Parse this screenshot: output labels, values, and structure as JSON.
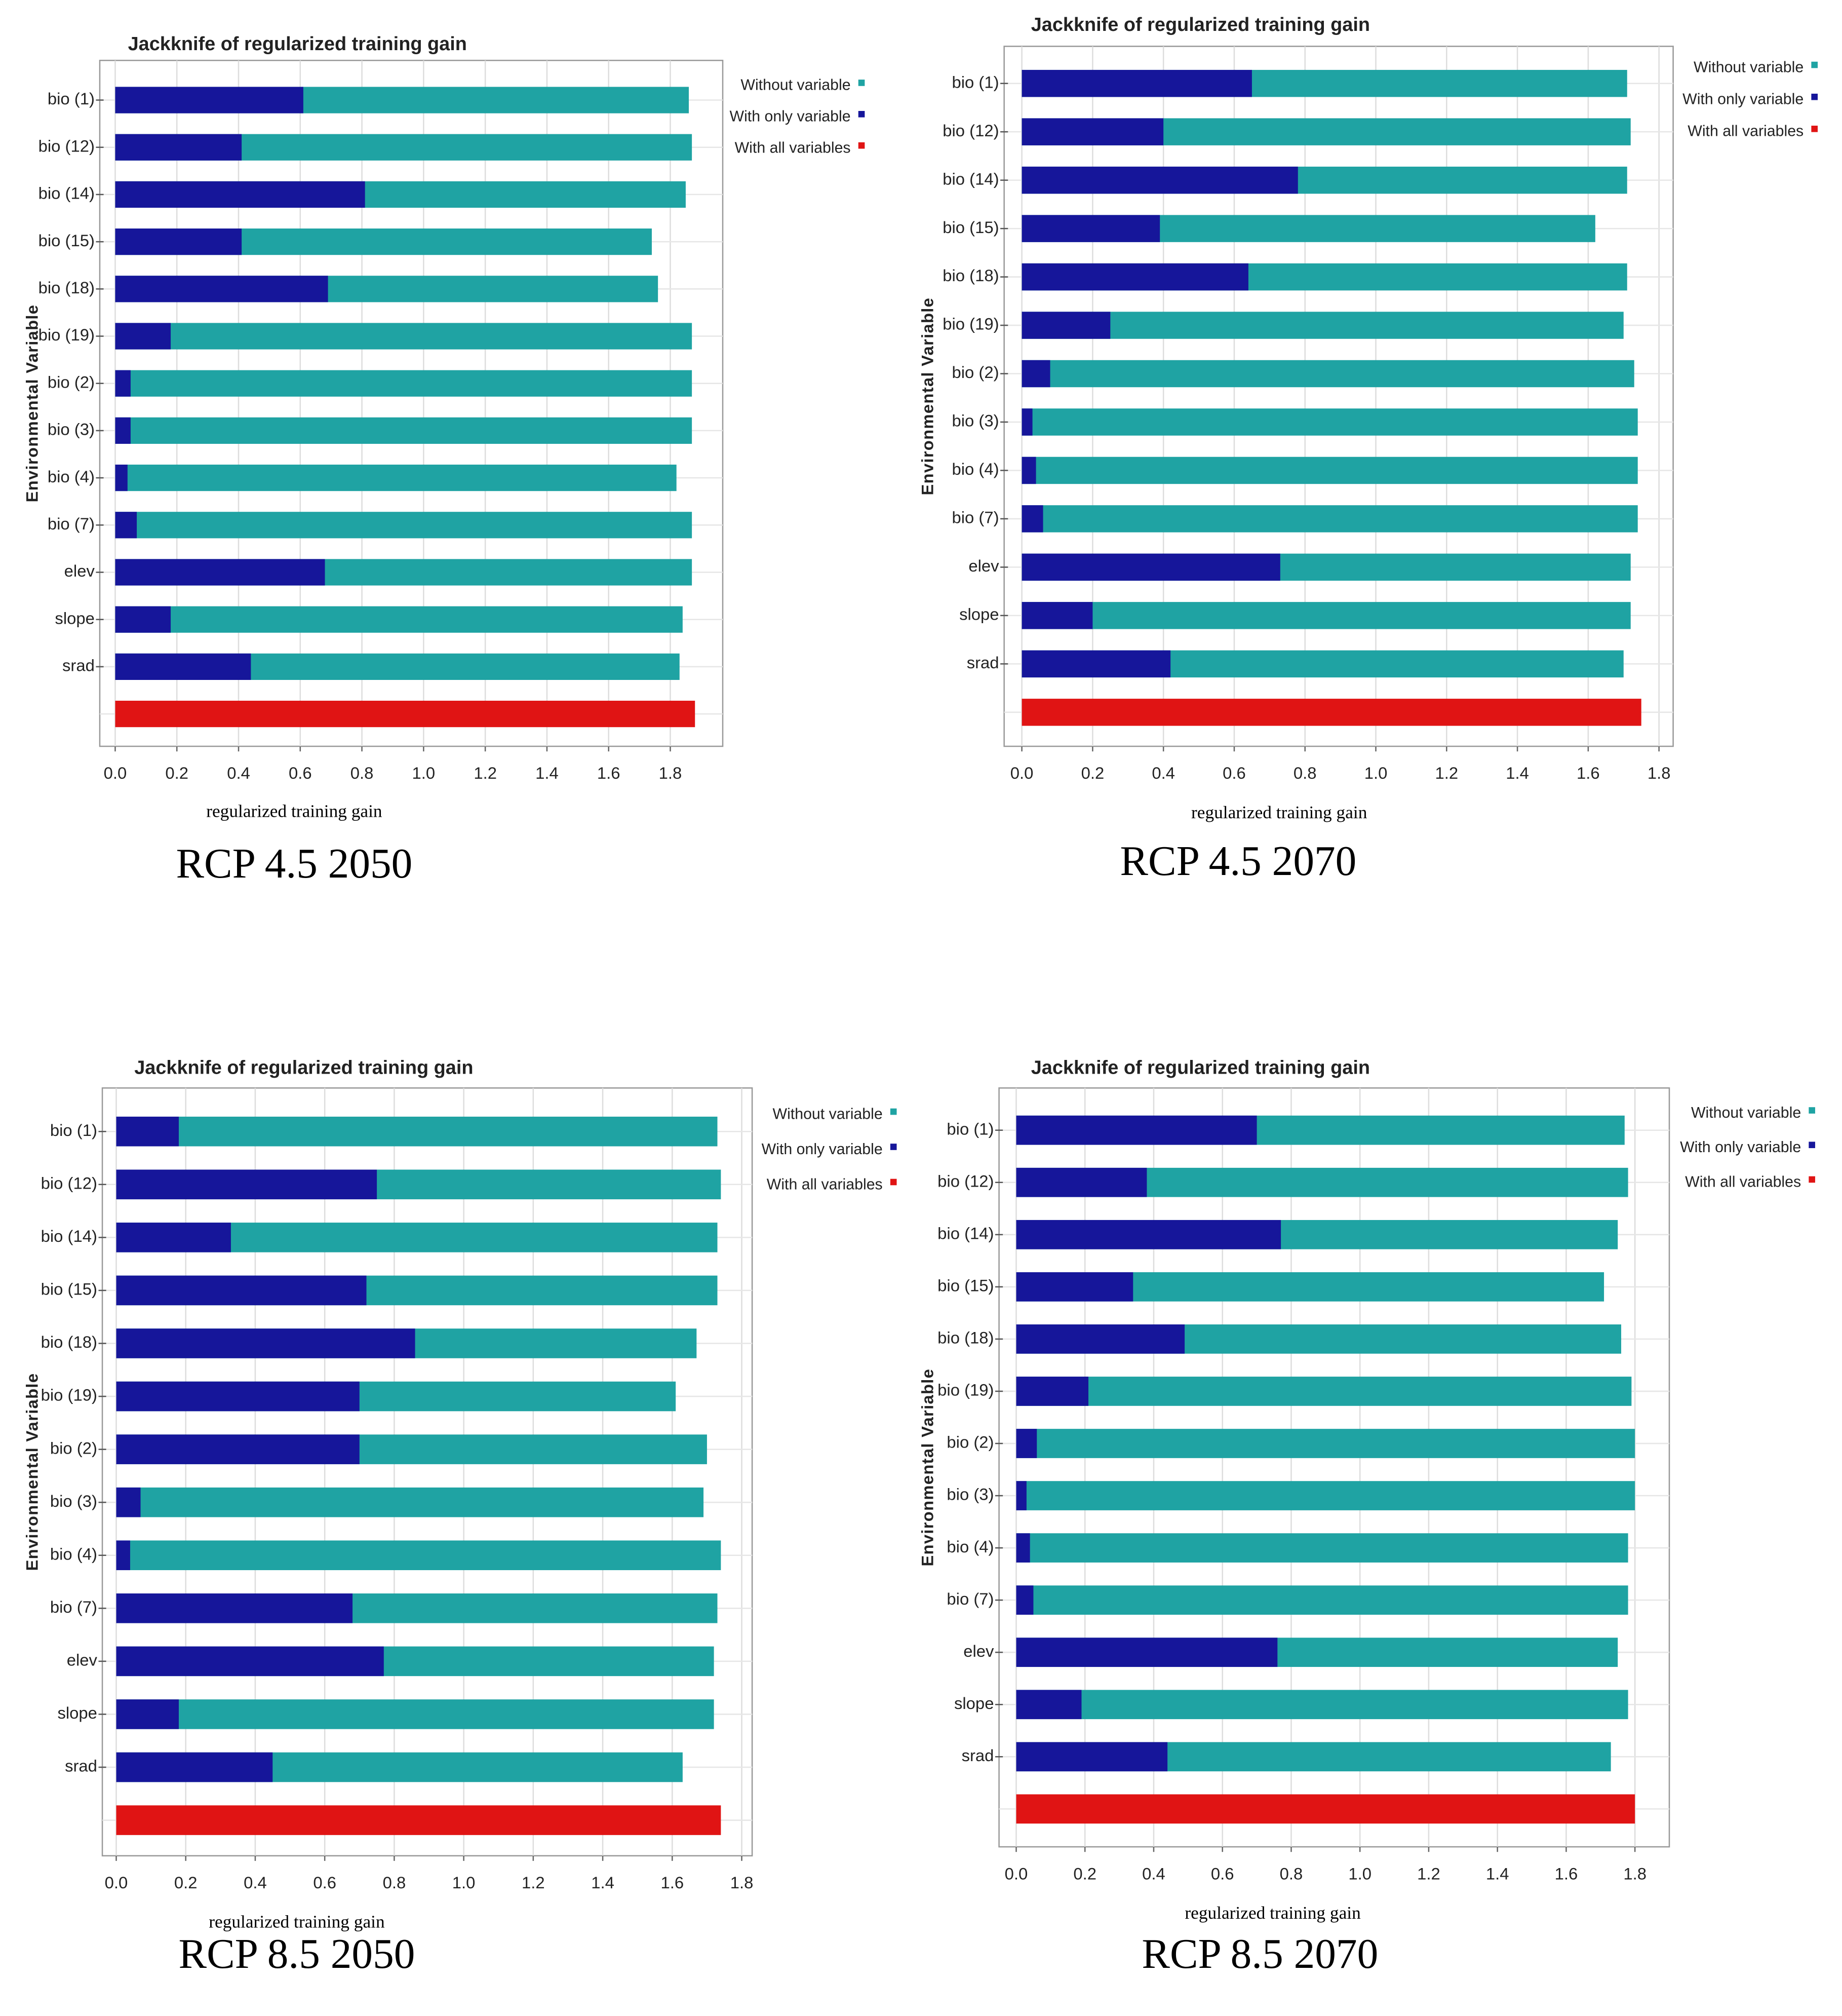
{
  "chart_data": [
    {
      "type": "bar",
      "title": "Jackknife of regularized training gain",
      "caption": "RCP 4.5 2050",
      "xlabel": "regularized training gain",
      "ylabel": "Environmental Variable",
      "legend": "upper right",
      "categories": [
        "bio (1)",
        "bio (12)",
        "bio (14)",
        "bio (15)",
        "bio (18)",
        "bio (19)",
        "bio (2)",
        "bio (3)",
        "bio (4)",
        "bio (7)",
        "elev",
        "slope",
        "srad",
        null
      ],
      "series": [
        {
          "name": "Without variable",
          "color": "#1fa3a3",
          "values": [
            1.86,
            1.87,
            1.85,
            1.74,
            1.76,
            1.87,
            1.87,
            1.87,
            1.82,
            1.87,
            1.87,
            1.84,
            1.83,
            null
          ]
        },
        {
          "name": "With only variable",
          "color": "#16169a",
          "values": [
            0.61,
            0.41,
            0.81,
            0.41,
            0.69,
            0.18,
            0.05,
            0.05,
            0.04,
            0.07,
            0.68,
            0.18,
            0.44,
            null
          ]
        },
        {
          "name": "With all variables",
          "color": "#e01414",
          "values": [
            null,
            null,
            null,
            null,
            null,
            null,
            null,
            null,
            null,
            null,
            null,
            null,
            null,
            1.88
          ]
        }
      ],
      "xlim": [
        -0.05,
        1.97
      ],
      "xticks": [
        {
          "value": 0,
          "label": "0.0"
        },
        0.2,
        0.4,
        0.6,
        0.8,
        {
          "value": 1,
          "label": "1.0"
        },
        1.2,
        1.4,
        1.6,
        1.8
      ],
      "grid": true
    },
    {
      "type": "bar",
      "title": "Jackknife of regularized training gain",
      "caption": "RCP 4.5 2070",
      "xlabel": "regularized training gain",
      "ylabel": "Environmental Variable",
      "legend": "upper right",
      "categories": [
        "bio (1)",
        "bio (12)",
        "bio (14)",
        "bio (15)",
        "bio (18)",
        "bio (19)",
        "bio (2)",
        "bio (3)",
        "bio (4)",
        "bio (7)",
        "elev",
        "slope",
        "srad",
        null
      ],
      "series": [
        {
          "name": "Without variable",
          "color": "#1fa3a3",
          "values": [
            1.71,
            1.72,
            1.71,
            1.62,
            1.71,
            1.7,
            1.73,
            1.74,
            1.74,
            1.74,
            1.72,
            1.72,
            1.7,
            null
          ]
        },
        {
          "name": "With only variable",
          "color": "#16169a",
          "values": [
            0.65,
            0.4,
            0.78,
            0.39,
            0.64,
            0.25,
            0.08,
            0.03,
            0.04,
            0.06,
            0.73,
            0.2,
            0.42,
            null
          ]
        },
        {
          "name": "With all variables",
          "color": "#e01414",
          "values": [
            null,
            null,
            null,
            null,
            null,
            null,
            null,
            null,
            null,
            null,
            null,
            null,
            null,
            1.75
          ]
        }
      ],
      "xlim": [
        -0.05,
        1.84
      ],
      "xticks": [
        {
          "value": 0,
          "label": "0.0"
        },
        0.2,
        0.4,
        0.6,
        0.8,
        {
          "value": 1,
          "label": "1.0"
        },
        1.2,
        1.4,
        1.6,
        1.8
      ],
      "grid": true
    },
    {
      "type": "bar",
      "title": "Jackknife of regularized training gain",
      "caption": "RCP 8.5 2050",
      "xlabel": "regularized training gain",
      "ylabel": "Environmental Variable",
      "legend": "upper right",
      "categories": [
        "bio (1)",
        "bio (12)",
        "bio (14)",
        "bio (15)",
        "bio (18)",
        "bio (19)",
        "bio (2)",
        "bio (3)",
        "bio (4)",
        "bio (7)",
        "elev",
        "slope",
        "srad",
        null
      ],
      "series": [
        {
          "name": "Without variable",
          "color": "#1fa3a3",
          "values": [
            1.73,
            1.74,
            1.73,
            1.73,
            1.67,
            1.61,
            1.7,
            1.69,
            1.74,
            1.73,
            1.72,
            1.72,
            1.63,
            null
          ]
        },
        {
          "name": "With only variable",
          "color": "#16169a",
          "values": [
            0.18,
            0.75,
            0.33,
            0.72,
            0.86,
            0.7,
            0.7,
            0.07,
            0.04,
            0.68,
            0.77,
            0.18,
            0.45,
            null
          ]
        },
        {
          "name": "With all variables",
          "color": "#e01414",
          "values": [
            null,
            null,
            null,
            null,
            null,
            null,
            null,
            null,
            null,
            null,
            null,
            null,
            null,
            1.74
          ]
        }
      ],
      "xlim": [
        -0.04,
        1.83
      ],
      "xticks": [
        {
          "value": 0,
          "label": "0.0"
        },
        0.2,
        0.4,
        0.6,
        0.8,
        {
          "value": 1,
          "label": "1.0"
        },
        1.2,
        1.4,
        1.6,
        1.8
      ],
      "grid": true
    },
    {
      "type": "bar",
      "title": "Jackknife of regularized training gain",
      "caption": "RCP 8.5 2070",
      "xlabel": "regularized training gain",
      "ylabel": "Environmental Variable",
      "legend": "upper right",
      "categories": [
        "bio (1)",
        "bio (12)",
        "bio (14)",
        "bio (15)",
        "bio (18)",
        "bio (19)",
        "bio (2)",
        "bio (3)",
        "bio (4)",
        "bio (7)",
        "elev",
        "slope",
        "srad",
        null
      ],
      "series": [
        {
          "name": "Without variable",
          "color": "#1fa3a3",
          "values": [
            1.77,
            1.78,
            1.75,
            1.71,
            1.76,
            1.79,
            1.8,
            1.8,
            1.78,
            1.78,
            1.75,
            1.78,
            1.73,
            null
          ]
        },
        {
          "name": "With only variable",
          "color": "#16169a",
          "values": [
            0.7,
            0.38,
            0.77,
            0.34,
            0.49,
            0.21,
            0.06,
            0.03,
            0.04,
            0.05,
            0.76,
            0.19,
            0.44,
            null
          ]
        },
        {
          "name": "With all variables",
          "color": "#e01414",
          "values": [
            null,
            null,
            null,
            null,
            null,
            null,
            null,
            null,
            null,
            null,
            null,
            null,
            null,
            1.8
          ]
        }
      ],
      "xlim": [
        -0.05,
        1.9
      ],
      "xticks": [
        {
          "value": 0,
          "label": "0.0"
        },
        0.2,
        0.4,
        0.6,
        0.8,
        {
          "value": 1,
          "label": "1.0"
        },
        1.2,
        1.4,
        1.6,
        1.8
      ],
      "grid": true
    }
  ]
}
